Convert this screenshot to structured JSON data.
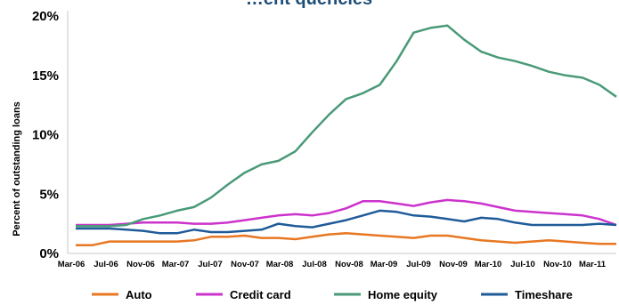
{
  "chart_data": {
    "type": "line",
    "title": "…ent quencies",
    "ylabel": "Percent of outstanding loans",
    "xlabel": "",
    "ylim": [
      0,
      20
    ],
    "y_ticks": [
      "0%",
      "5%",
      "10%",
      "15%",
      "20%"
    ],
    "x_tick_labels": [
      "Mar-06",
      "Jul-06",
      "Nov-06",
      "Mar-07",
      "Jul-07",
      "Nov-07",
      "Mar-08",
      "Jul-08",
      "Nov-08",
      "Mar-09",
      "Jul-09",
      "Nov-09",
      "Mar-10",
      "Jul-10",
      "Nov-10",
      "Mar-11"
    ],
    "legend_position": "bottom",
    "grid": false,
    "series": [
      {
        "name": "Auto",
        "color": "#e87722",
        "values": [
          0.7,
          0.7,
          1.0,
          1.0,
          1.0,
          1.0,
          1.0,
          1.1,
          1.4,
          1.4,
          1.5,
          1.3,
          1.3,
          1.2,
          1.4,
          1.6,
          1.7,
          1.6,
          1.5,
          1.4,
          1.3,
          1.5,
          1.5,
          1.3,
          1.1,
          1.0,
          0.9,
          1.0,
          1.1,
          1.0,
          0.9,
          0.8,
          0.8
        ]
      },
      {
        "name": "Credit card",
        "color": "#cc33cc",
        "values": [
          2.4,
          2.4,
          2.4,
          2.5,
          2.6,
          2.6,
          2.6,
          2.5,
          2.5,
          2.6,
          2.8,
          3.0,
          3.2,
          3.3,
          3.2,
          3.4,
          3.8,
          4.4,
          4.4,
          4.2,
          4.0,
          4.3,
          4.5,
          4.4,
          4.2,
          3.9,
          3.6,
          3.5,
          3.4,
          3.3,
          3.2,
          2.9,
          2.4
        ]
      },
      {
        "name": "Home equity",
        "color": "#4a9a78",
        "values": [
          2.3,
          2.3,
          2.3,
          2.4,
          2.9,
          3.2,
          3.6,
          3.9,
          4.7,
          5.8,
          6.8,
          7.5,
          7.8,
          8.6,
          10.2,
          11.7,
          13.0,
          13.5,
          14.2,
          16.2,
          18.6,
          19.0,
          19.2,
          18.0,
          17.0,
          16.5,
          16.2,
          15.8,
          15.3,
          15.0,
          14.8,
          14.2,
          13.2
        ]
      },
      {
        "name": "Timeshare",
        "color": "#1f5b99",
        "values": [
          2.1,
          2.1,
          2.1,
          2.0,
          1.9,
          1.7,
          1.7,
          2.0,
          1.8,
          1.8,
          1.9,
          2.0,
          2.5,
          2.3,
          2.2,
          2.5,
          2.8,
          3.2,
          3.6,
          3.5,
          3.2,
          3.1,
          2.9,
          2.7,
          3.0,
          2.9,
          2.6,
          2.4,
          2.4,
          2.4,
          2.4,
          2.5,
          2.4
        ]
      }
    ]
  }
}
